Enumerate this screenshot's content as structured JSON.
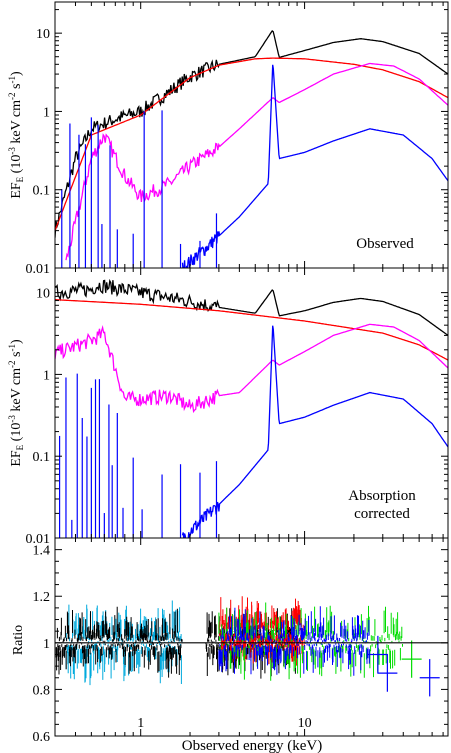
{
  "figure": {
    "xlabel": "Observed energy (keV)",
    "x_ticks": [
      1,
      10
    ]
  },
  "panels": {
    "top": {
      "ylabel": "EF",
      "ylabel_sub": "E",
      "ylabel_units": "(10",
      "ylabel_units2": " keV cm",
      "ylabel_units3": " s",
      "ylabel_exp1": "-3",
      "ylabel_exp2": "-2",
      "ylabel_exp3": "-1",
      "ylabel_close": ")",
      "annotation": "Observed",
      "y_ticks": [
        "0.01",
        "0.1",
        "1",
        "10"
      ]
    },
    "middle": {
      "ylabel": "EF",
      "ylabel_sub": "E",
      "ylabel_units": "(10",
      "ylabel_units2": " keV cm",
      "ylabel_units3": " s",
      "ylabel_exp1": "-3",
      "ylabel_exp2": "-2",
      "ylabel_exp3": "-1",
      "ylabel_close": ")",
      "annotation_line1": "Absorption",
      "annotation_line2": "corrected",
      "y_ticks": [
        "0.01",
        "0.1",
        "1",
        "10"
      ]
    },
    "bottom": {
      "ylabel": "Ratio",
      "y_ticks": [
        "0.6",
        "0.8",
        "1",
        "1.2",
        "1.4"
      ]
    }
  },
  "chart_data": [
    {
      "type": "line",
      "panel": "Observed",
      "xscale": "log",
      "yscale": "log",
      "xlim": [
        0.3,
        75
      ],
      "ylim": [
        0.01,
        25
      ],
      "series": [
        {
          "color": "#000000",
          "x": [
            0.3,
            0.4,
            0.5,
            0.7,
            1.0,
            1.5,
            2.0,
            3.0,
            5.0,
            6.4,
            7.0,
            10,
            15,
            22,
            30,
            50,
            75
          ],
          "y": [
            0.03,
            0.25,
            0.6,
            0.8,
            1.0,
            1.8,
            2.8,
            4.0,
            5.0,
            11.0,
            4.9,
            6.0,
            7.6,
            8.5,
            7.8,
            5.5,
            3.0
          ]
        },
        {
          "color": "#ff0000",
          "x": [
            0.3,
            0.5,
            1.0,
            2.0,
            3.0,
            5.0,
            6.4,
            10,
            20,
            30,
            50,
            75
          ],
          "y": [
            0.03,
            0.5,
            0.9,
            2.7,
            3.9,
            4.7,
            4.8,
            4.7,
            4.0,
            3.4,
            2.4,
            1.5
          ]
        },
        {
          "color": "#ff00ff",
          "x": [
            0.35,
            0.5,
            0.6,
            0.8,
            1.0,
            1.5,
            2.0,
            3.0,
            4.0,
            6.4,
            7.0,
            10,
            15,
            25,
            35,
            50,
            75
          ],
          "y": [
            0.012,
            0.25,
            0.5,
            0.15,
            0.08,
            0.12,
            0.2,
            0.35,
            0.6,
            1.5,
            1.3,
            1.9,
            3.0,
            4.1,
            3.8,
            2.6,
            1.2
          ]
        },
        {
          "color": "#0000ff",
          "x": [
            1.8,
            2.5,
            4.0,
            6.0,
            6.4,
            7.0,
            10,
            15,
            25,
            40,
            60,
            75
          ],
          "y": [
            0.01,
            0.018,
            0.045,
            0.12,
            4.5,
            0.25,
            0.3,
            0.42,
            0.6,
            0.5,
            0.25,
            0.13
          ]
        }
      ]
    },
    {
      "type": "line",
      "panel": "Absorption corrected",
      "xscale": "log",
      "yscale": "log",
      "xlim": [
        0.3,
        75
      ],
      "ylim": [
        0.01,
        20
      ],
      "series": [
        {
          "color": "#000000",
          "x": [
            0.3,
            0.5,
            0.55,
            1.0,
            2.0,
            3.0,
            5.0,
            6.4,
            7.0,
            10,
            15,
            22,
            30,
            50,
            75
          ],
          "y": [
            10.0,
            11.0,
            12.5,
            10.0,
            7.8,
            6.6,
            5.6,
            11.0,
            5.2,
            6.0,
            7.6,
            8.5,
            7.8,
            5.4,
            3.0
          ]
        },
        {
          "color": "#ff0000",
          "x": [
            0.3,
            1.0,
            3.0,
            10,
            30,
            50,
            75
          ],
          "y": [
            8.2,
            7.2,
            6.0,
            4.5,
            3.2,
            2.3,
            1.5
          ]
        },
        {
          "color": "#ff00ff",
          "x": [
            0.3,
            0.5,
            0.6,
            0.8,
            1.0,
            1.5,
            2.0,
            3.0,
            4.0,
            6.4,
            7.0,
            10,
            15,
            25,
            35,
            50,
            75
          ],
          "y": [
            1.8,
            2.6,
            3.2,
            0.5,
            0.5,
            0.55,
            0.4,
            0.55,
            0.6,
            1.5,
            1.3,
            1.9,
            3.0,
            4.1,
            3.8,
            2.6,
            1.2
          ]
        },
        {
          "color": "#0000ff",
          "x": [
            1.8,
            2.5,
            4.0,
            6.0,
            6.4,
            7.0,
            10,
            15,
            25,
            40,
            60,
            75
          ],
          "y": [
            0.01,
            0.018,
            0.045,
            0.12,
            4.5,
            0.25,
            0.3,
            0.42,
            0.6,
            0.5,
            0.25,
            0.13
          ]
        }
      ]
    },
    {
      "type": "scatter",
      "panel": "Ratio",
      "xscale": "log",
      "xlim": [
        0.3,
        75
      ],
      "ylim": [
        0.6,
        1.45
      ],
      "reference_line": 1,
      "series": [
        {
          "color": "#00aadd",
          "x_range": [
            0.35,
            1.8
          ],
          "mean": 1.0,
          "spread": 0.12
        },
        {
          "color": "#000000",
          "x_range": [
            0.3,
            1.8
          ],
          "mean": 1.0,
          "spread": 0.1
        },
        {
          "color": "#000000",
          "x_range": [
            2.5,
            9.0
          ],
          "mean": 1.0,
          "spread": 0.1
        },
        {
          "color": "#ff0000",
          "x_range": [
            3.0,
            10.0
          ],
          "mean": 1.05,
          "spread": 0.1
        },
        {
          "color": "#00dd00",
          "x_range": [
            3.0,
            40.0
          ],
          "mean": 1.0,
          "spread": 0.12
        },
        {
          "color": "#0000ff",
          "x_range": [
            3.0,
            25.0
          ],
          "mean": 1.0,
          "spread": 0.1
        }
      ]
    }
  ]
}
